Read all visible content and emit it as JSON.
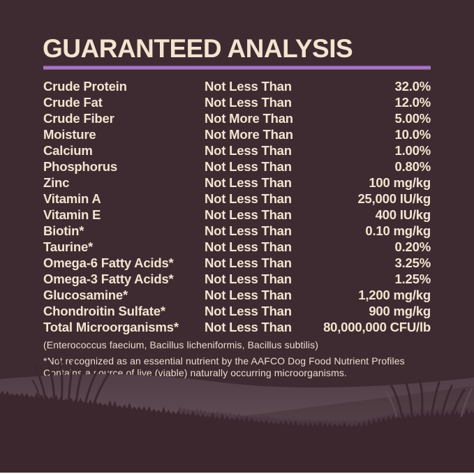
{
  "title": "GUARANTEED ANALYSIS",
  "table": {
    "rows": [
      {
        "name": "Crude Protein",
        "qualifier": "Not Less Than",
        "value": "32.0%"
      },
      {
        "name": "Crude Fat",
        "qualifier": "Not Less Than",
        "value": "12.0%"
      },
      {
        "name": "Crude Fiber",
        "qualifier": "Not More Than",
        "value": "5.00%"
      },
      {
        "name": "Moisture",
        "qualifier": "Not More Than",
        "value": "10.0%"
      },
      {
        "name": "Calcium",
        "qualifier": "Not Less Than",
        "value": "1.00%"
      },
      {
        "name": "Phosphorus",
        "qualifier": "Not Less Than",
        "value": "0.80%"
      },
      {
        "name": "Zinc",
        "qualifier": "Not Less Than",
        "value": "100 mg/kg"
      },
      {
        "name": "Vitamin A",
        "qualifier": "Not Less Than",
        "value": "25,000 IU/kg"
      },
      {
        "name": "Vitamin E",
        "qualifier": "Not Less Than",
        "value": "400 IU/kg"
      },
      {
        "name": "Biotin*",
        "qualifier": "Not Less Than",
        "value": "0.10 mg/kg"
      },
      {
        "name": "Taurine*",
        "qualifier": "Not Less Than",
        "value": "0.20%"
      },
      {
        "name": "Omega-6 Fatty Acids*",
        "qualifier": "Not Less Than",
        "value": "3.25%"
      },
      {
        "name": "Omega-3 Fatty Acids*",
        "qualifier": "Not Less Than",
        "value": "1.25%"
      },
      {
        "name": "Glucosamine*",
        "qualifier": "Not Less Than",
        "value": "1,200 mg/kg"
      },
      {
        "name": "Chondroitin Sulfate*",
        "qualifier": "Not Less Than",
        "value": "900 mg/kg"
      },
      {
        "name": "Total Microorganisms*",
        "qualifier": "Not Less Than",
        "value": "80,000,000 CFU/lb"
      }
    ]
  },
  "footnotes": {
    "species": "(Enterococcus faecium, Bacillus licheniformis, Bacillus subtilis)",
    "line1": "*Not recognized as an essential nutrient by the AAFCO Dog Food Nutrient Profiles",
    "line2": "Contains a source of live (viable) naturally occurring microorganisms."
  },
  "colors": {
    "background": "#3e2b31",
    "text_cream": "#f2e4cf",
    "accent_purple": "#7b4897",
    "accent_purple_light": "#a87cc0",
    "hill_light_bottom": "#685359",
    "foreground_dark": "#3b272d"
  }
}
